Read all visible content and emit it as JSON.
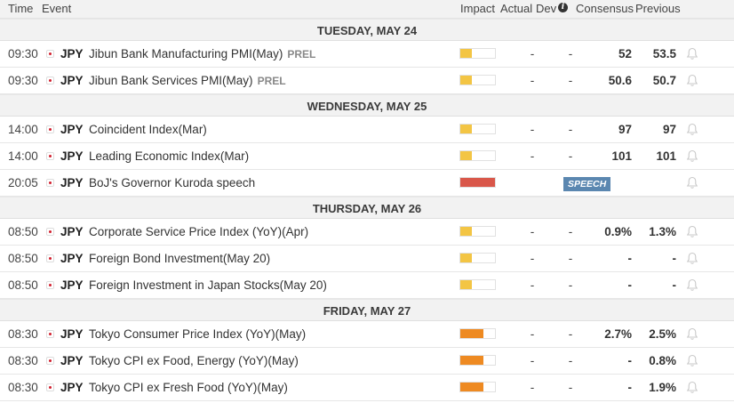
{
  "header": {
    "time": "Time",
    "event": "Event",
    "impact": "Impact",
    "actual": "Actual",
    "dev": "Dev",
    "consensus": "Consensus",
    "previous": "Previous"
  },
  "colors": {
    "impact_low": "#f3c544",
    "impact_medium": "#ee8a22",
    "impact_high": "#d9574a"
  },
  "days": [
    {
      "label": "TUESDAY, MAY 24",
      "events": [
        {
          "time": "09:30",
          "currency": "JPY",
          "event": "Jibun Bank Manufacturing PMI(May)",
          "tag": "PREL",
          "impact": "low",
          "impact_fill": 0.33,
          "actual": "-",
          "dev": "-",
          "consensus": "52",
          "previous": "53.5"
        },
        {
          "time": "09:30",
          "currency": "JPY",
          "event": "Jibun Bank Services PMI(May)",
          "tag": "PREL",
          "impact": "low",
          "impact_fill": 0.33,
          "actual": "-",
          "dev": "-",
          "consensus": "50.6",
          "previous": "50.7"
        }
      ]
    },
    {
      "label": "WEDNESDAY, MAY 25",
      "events": [
        {
          "time": "14:00",
          "currency": "JPY",
          "event": "Coincident Index(Mar)",
          "tag": "",
          "impact": "low",
          "impact_fill": 0.33,
          "actual": "-",
          "dev": "-",
          "consensus": "97",
          "previous": "97"
        },
        {
          "time": "14:00",
          "currency": "JPY",
          "event": "Leading Economic Index(Mar)",
          "tag": "",
          "impact": "low",
          "impact_fill": 0.33,
          "actual": "-",
          "dev": "-",
          "consensus": "101",
          "previous": "101"
        },
        {
          "time": "20:05",
          "currency": "JPY",
          "event": "BoJ's Governor Kuroda speech",
          "tag": "",
          "impact": "high",
          "impact_fill": 1.0,
          "actual": "",
          "dev": "",
          "speech": "SPEECH",
          "consensus": "",
          "previous": ""
        }
      ]
    },
    {
      "label": "THURSDAY, MAY 26",
      "events": [
        {
          "time": "08:50",
          "currency": "JPY",
          "event": "Corporate Service Price Index (YoY)(Apr)",
          "tag": "",
          "impact": "low",
          "impact_fill": 0.33,
          "actual": "-",
          "dev": "-",
          "consensus": "0.9%",
          "previous": "1.3%"
        },
        {
          "time": "08:50",
          "currency": "JPY",
          "event": "Foreign Bond Investment(May 20)",
          "tag": "",
          "impact": "low",
          "impact_fill": 0.33,
          "actual": "-",
          "dev": "-",
          "consensus": "-",
          "previous": "-"
        },
        {
          "time": "08:50",
          "currency": "JPY",
          "event": "Foreign Investment in Japan Stocks(May 20)",
          "tag": "",
          "impact": "low",
          "impact_fill": 0.33,
          "actual": "-",
          "dev": "-",
          "consensus": "-",
          "previous": "-"
        }
      ]
    },
    {
      "label": "FRIDAY, MAY 27",
      "events": [
        {
          "time": "08:30",
          "currency": "JPY",
          "event": "Tokyo Consumer Price Index (YoY)(May)",
          "tag": "",
          "impact": "medium",
          "impact_fill": 0.66,
          "actual": "-",
          "dev": "-",
          "consensus": "2.7%",
          "previous": "2.5%"
        },
        {
          "time": "08:30",
          "currency": "JPY",
          "event": "Tokyo CPI ex Food, Energy (YoY)(May)",
          "tag": "",
          "impact": "medium",
          "impact_fill": 0.66,
          "actual": "-",
          "dev": "-",
          "consensus": "-",
          "previous": "0.8%"
        },
        {
          "time": "08:30",
          "currency": "JPY",
          "event": "Tokyo CPI ex Fresh Food (YoY)(May)",
          "tag": "",
          "impact": "medium",
          "impact_fill": 0.66,
          "actual": "-",
          "dev": "-",
          "consensus": "-",
          "previous": "1.9%"
        }
      ]
    }
  ]
}
